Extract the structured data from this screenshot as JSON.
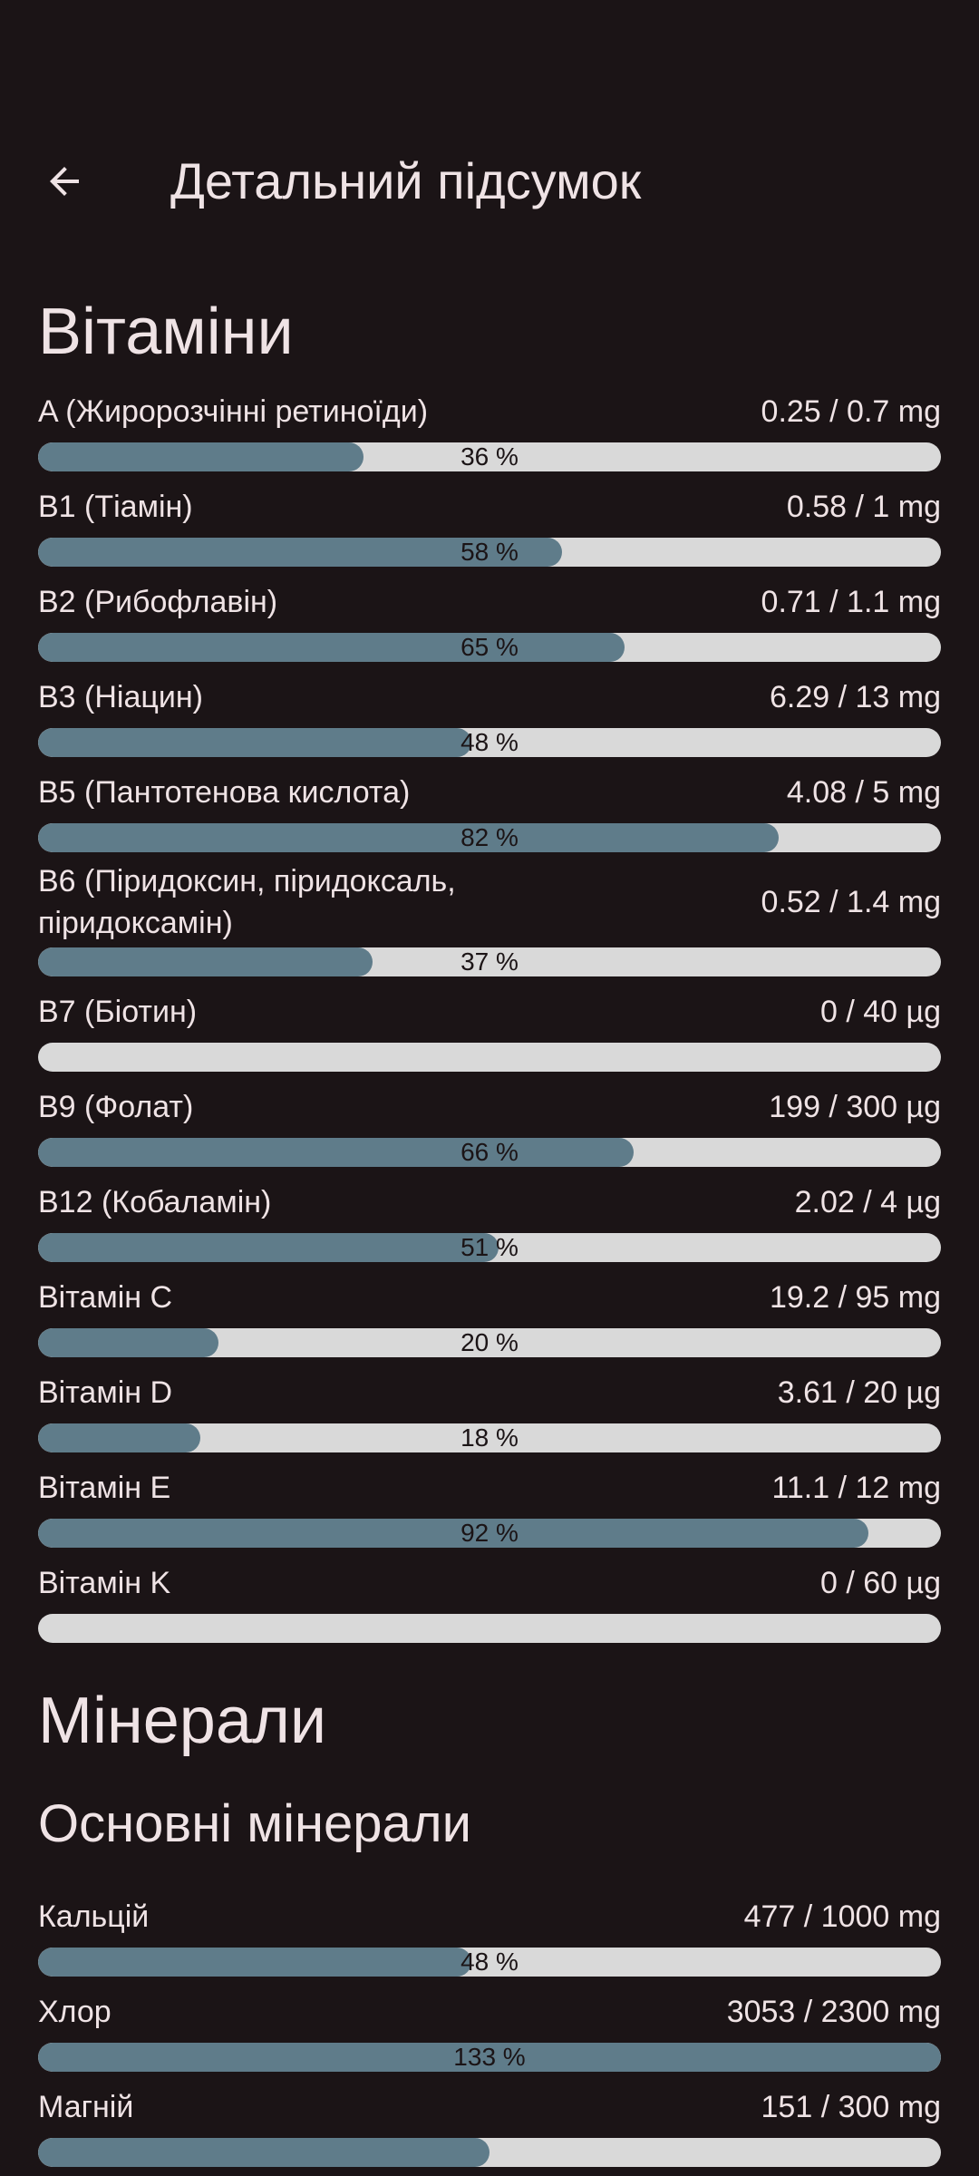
{
  "header": {
    "back_icon": "arrow-left-icon",
    "title": "Детальний підсумок"
  },
  "vitamins": {
    "title": "Вітаміни",
    "items": [
      {
        "name": "A (Жиророзчінні ретиноїди)",
        "amount": "0.25 / 0.7 mg",
        "percent": 36,
        "percent_label": "36 %"
      },
      {
        "name": "B1 (Тіамін)",
        "amount": "0.58 / 1 mg",
        "percent": 58,
        "percent_label": "58 %"
      },
      {
        "name": "B2 (Рибофлавін)",
        "amount": "0.71 / 1.1 mg",
        "percent": 65,
        "percent_label": "65 %"
      },
      {
        "name": "B3 (Ніацин)",
        "amount": "6.29 / 13 mg",
        "percent": 48,
        "percent_label": "48 %"
      },
      {
        "name": "B5 (Пантотенова кислота)",
        "amount": "4.08 / 5 mg",
        "percent": 82,
        "percent_label": "82 %"
      },
      {
        "name": "B6 (Піридоксин, піридоксаль, піридоксамін)",
        "amount": "0.52 / 1.4 mg",
        "percent": 37,
        "percent_label": "37 %"
      },
      {
        "name": "B7 (Біотин)",
        "amount": "0 / 40 µg",
        "percent": 0,
        "percent_label": ""
      },
      {
        "name": "B9 (Фолат)",
        "amount": "199 / 300 µg",
        "percent": 66,
        "percent_label": "66 %"
      },
      {
        "name": "B12 (Кобаламін)",
        "amount": "2.02 / 4 µg",
        "percent": 51,
        "percent_label": "51 %"
      },
      {
        "name": "Вітамін C",
        "amount": "19.2 / 95 mg",
        "percent": 20,
        "percent_label": "20 %"
      },
      {
        "name": "Вітамін D",
        "amount": "3.61 / 20 µg",
        "percent": 18,
        "percent_label": "18 %"
      },
      {
        "name": "Вітамін E",
        "amount": "11.1 / 12 mg",
        "percent": 92,
        "percent_label": "92 %"
      },
      {
        "name": "Вітамін K",
        "amount": "0 / 60 µg",
        "percent": 0,
        "percent_label": ""
      }
    ]
  },
  "minerals": {
    "title": "Мінерали",
    "subtitle": "Основні мінерали",
    "items": [
      {
        "name": "Кальцій",
        "amount": "477 / 1000 mg",
        "percent": 48,
        "percent_label": "48 %"
      },
      {
        "name": "Хлор",
        "amount": "3053 / 2300 mg",
        "percent": 133,
        "percent_label": "133 %"
      },
      {
        "name": "Магній",
        "amount": "151 / 300 mg",
        "percent": 50,
        "percent_label": ""
      }
    ]
  },
  "colors": {
    "background": "#1b1416",
    "text": "#efe3e5",
    "bar_track": "#d9d9d9",
    "bar_fill": "#5f7c8a"
  }
}
